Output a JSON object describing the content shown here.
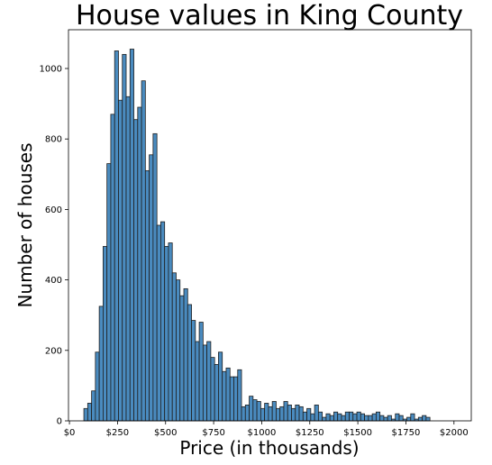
{
  "chart_data": {
    "type": "bar",
    "title": "House values in King County",
    "xlabel": "Price (in thousands)",
    "ylabel": "Number of houses",
    "xlim": [
      -5,
      2090
    ],
    "ylim": [
      0,
      1110
    ],
    "grid": false,
    "bar_color": "#4a8bbf",
    "bar_edge_color": "#1f1f1f",
    "bin_width": 20,
    "bin_start": 75,
    "x_ticks": [
      {
        "value": 0,
        "label": "$0"
      },
      {
        "value": 250,
        "label": "$250"
      },
      {
        "value": 500,
        "label": "$500"
      },
      {
        "value": 750,
        "label": "$750"
      },
      {
        "value": 1000,
        "label": "$1000"
      },
      {
        "value": 1250,
        "label": "$1250"
      },
      {
        "value": 1500,
        "label": "$1500"
      },
      {
        "value": 1750,
        "label": "$1750"
      },
      {
        "value": 2000,
        "label": "$2000"
      }
    ],
    "y_ticks": [
      {
        "value": 0,
        "label": "0"
      },
      {
        "value": 200,
        "label": "200"
      },
      {
        "value": 400,
        "label": "400"
      },
      {
        "value": 600,
        "label": "600"
      },
      {
        "value": 800,
        "label": "800"
      },
      {
        "value": 1000,
        "label": "1000"
      }
    ],
    "values": [
      35,
      50,
      85,
      195,
      325,
      495,
      730,
      870,
      1050,
      910,
      1040,
      920,
      1055,
      855,
      890,
      965,
      710,
      755,
      815,
      555,
      565,
      495,
      505,
      420,
      400,
      355,
      375,
      330,
      285,
      225,
      280,
      215,
      225,
      180,
      160,
      195,
      140,
      150,
      125,
      125,
      145,
      40,
      45,
      70,
      60,
      55,
      35,
      50,
      40,
      55,
      35,
      40,
      55,
      45,
      35,
      45,
      40,
      25,
      35,
      20,
      45,
      25,
      10,
      20,
      15,
      25,
      20,
      15,
      25,
      25,
      20,
      25,
      20,
      15,
      15,
      20,
      25,
      15,
      10,
      15,
      5,
      20,
      15,
      5,
      10,
      20,
      5,
      10,
      15,
      10
    ]
  }
}
